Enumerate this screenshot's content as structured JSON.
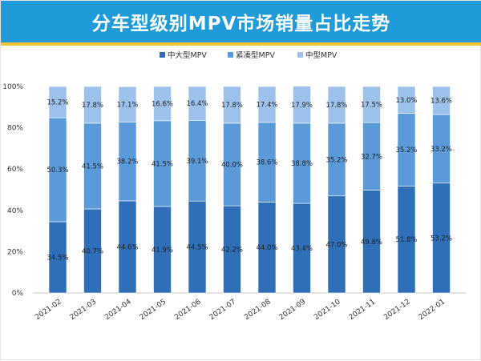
{
  "title": "分车型级别MPV市场销量占比走势",
  "colors": {
    "title_bg": "#1f9bd9",
    "title_underline": "#f4c430",
    "series": [
      "#2e6fb8",
      "#5b9ad9",
      "#9cc2ec"
    ]
  },
  "chart_data": {
    "type": "bar",
    "stacked": true,
    "categories": [
      "2021-02",
      "2021-03",
      "2021-04",
      "2021-05",
      "2021-06",
      "2021-07",
      "2021-08",
      "2021-09",
      "2021-10",
      "2021-11",
      "2021-12",
      "2022-01"
    ],
    "series": [
      {
        "name": "中大型MPV",
        "values": [
          34.5,
          40.7,
          44.6,
          41.9,
          44.5,
          42.2,
          44.0,
          43.4,
          47.0,
          49.8,
          51.8,
          53.2
        ],
        "labels": [
          "34.5%",
          "40.7%",
          "44.6%",
          "41.9%",
          "44.5%",
          "42.2%",
          "44.0%",
          "43.4%",
          "47.0%",
          "49.8%",
          "51.8%",
          "53.2%"
        ]
      },
      {
        "name": "紧凑型MPV",
        "values": [
          50.3,
          41.5,
          38.2,
          41.5,
          39.1,
          40.0,
          38.6,
          38.8,
          35.2,
          32.7,
          35.2,
          33.2
        ],
        "labels": [
          "50.3%",
          "41.5%",
          "38.2%",
          "41.5%",
          "39.1%",
          "40.0%",
          "38.6%",
          "38.8%",
          "35.2%",
          "32.7%",
          "35.2%",
          "33.2%"
        ]
      },
      {
        "name": "中型MPV",
        "values": [
          15.2,
          17.8,
          17.1,
          16.6,
          16.4,
          17.8,
          17.4,
          17.9,
          17.8,
          17.5,
          13.0,
          13.6
        ],
        "labels": [
          "15.2%",
          "17.8%",
          "17.1%",
          "16.6%",
          "16.4%",
          "17.8%",
          "17.4%",
          "17.9%",
          "17.8%",
          "17.5%",
          "13.0%",
          "13.6%"
        ]
      }
    ],
    "ylim": [
      0,
      100
    ],
    "yticks": [
      "0%",
      "20%",
      "40%",
      "60%",
      "80%",
      "100%"
    ],
    "grid": false,
    "legend_position": "top-center"
  }
}
